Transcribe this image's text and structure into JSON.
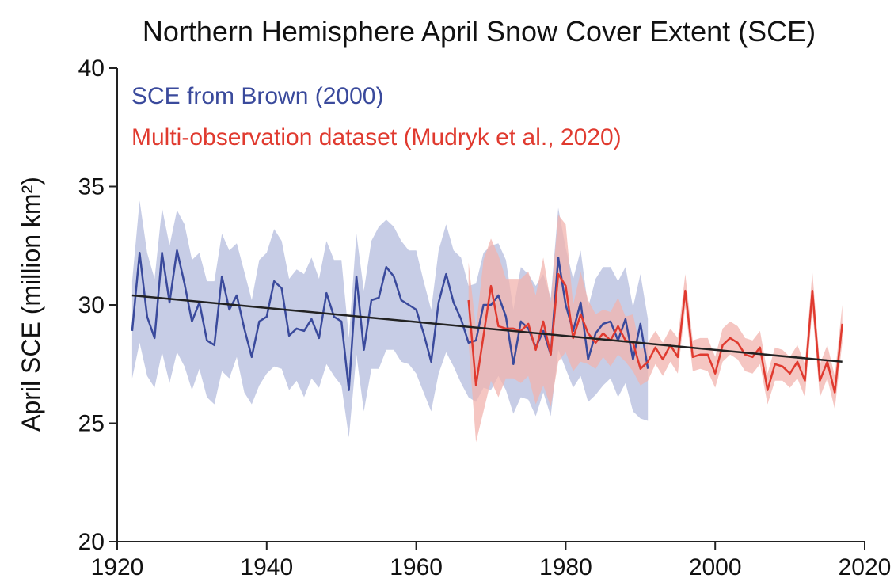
{
  "chart_data": {
    "type": "line",
    "title": "Northern Hemisphere April Snow Cover Extent (SCE)",
    "ylabel": "April SCE (million km²)",
    "xlabel": "",
    "xlim": [
      1920,
      2020
    ],
    "ylim": [
      20,
      40
    ],
    "x_ticks": [
      "1920",
      "1940",
      "1960",
      "1980",
      "2000",
      "2020"
    ],
    "y_ticks": [
      "20",
      "25",
      "30",
      "35",
      "40"
    ],
    "grid": false,
    "legend_position": "top-left",
    "series": [
      {
        "name": "SCE from Brown (2000)",
        "color": "#3a4a9c",
        "band_color": "#c7cde6",
        "x": [
          1922,
          1923,
          1924,
          1925,
          1926,
          1927,
          1928,
          1929,
          1930,
          1931,
          1932,
          1933,
          1934,
          1935,
          1936,
          1937,
          1938,
          1939,
          1940,
          1941,
          1942,
          1943,
          1944,
          1945,
          1946,
          1947,
          1948,
          1949,
          1950,
          1951,
          1952,
          1953,
          1954,
          1955,
          1956,
          1957,
          1958,
          1959,
          1960,
          1961,
          1962,
          1963,
          1964,
          1965,
          1966,
          1967,
          1968,
          1969,
          1970,
          1971,
          1972,
          1973,
          1974,
          1975,
          1976,
          1977,
          1978,
          1979,
          1980,
          1981,
          1982,
          1983,
          1984,
          1985,
          1986,
          1987,
          1988,
          1989,
          1990,
          1991
        ],
        "values": [
          28.9,
          32.2,
          29.5,
          28.6,
          32.2,
          30.1,
          32.3,
          30.9,
          29.3,
          30.1,
          28.5,
          28.3,
          31.2,
          29.8,
          30.4,
          29.0,
          27.8,
          29.3,
          29.5,
          31.0,
          30.7,
          28.7,
          29.0,
          28.9,
          29.4,
          28.6,
          30.5,
          29.5,
          29.3,
          26.4,
          31.2,
          28.1,
          30.2,
          30.3,
          31.6,
          31.2,
          30.2,
          30.0,
          29.8,
          28.8,
          27.6,
          30.1,
          31.3,
          30.1,
          29.4,
          28.4,
          28.5,
          30.0,
          30.0,
          30.4,
          29.5,
          27.5,
          29.3,
          29.0,
          28.2,
          28.9,
          27.9,
          32.0,
          30.0,
          28.9,
          30.1,
          27.7,
          28.8,
          29.2,
          29.3,
          28.5,
          29.4,
          27.7,
          29.2,
          27.3
        ],
        "band_lower": [
          26.9,
          28.4,
          27.0,
          26.5,
          28.0,
          26.7,
          28.0,
          27.4,
          26.4,
          27.3,
          26.1,
          25.8,
          27.2,
          26.9,
          27.8,
          26.3,
          25.8,
          26.6,
          27.1,
          27.4,
          27.3,
          26.4,
          26.8,
          26.1,
          26.9,
          26.5,
          27.5,
          27.0,
          26.6,
          24.4,
          27.9,
          25.5,
          27.3,
          27.3,
          28.1,
          28.1,
          27.6,
          27.5,
          27.1,
          26.3,
          25.5,
          27.1,
          28.0,
          27.4,
          26.7,
          26.1,
          25.9,
          26.5,
          26.4,
          27.0,
          26.4,
          25.4,
          26.1,
          26.0,
          25.3,
          26.3,
          25.3,
          28.1,
          27.3,
          26.5,
          27.0,
          25.9,
          26.2,
          26.6,
          26.9,
          26.1,
          26.7,
          25.5,
          25.2,
          25.1
        ],
        "band_upper": [
          31.0,
          34.4,
          32.2,
          31.1,
          34.1,
          32.5,
          34.0,
          33.4,
          31.9,
          32.2,
          31.0,
          31.0,
          33.0,
          32.3,
          32.6,
          31.4,
          30.2,
          31.9,
          32.2,
          33.2,
          32.7,
          31.1,
          31.5,
          31.3,
          32.0,
          31.1,
          32.7,
          31.9,
          31.9,
          28.6,
          33.0,
          30.6,
          32.7,
          33.3,
          33.6,
          33.3,
          32.7,
          32.3,
          32.3,
          31.0,
          29.8,
          32.3,
          33.4,
          32.3,
          32.0,
          30.8,
          30.9,
          32.2,
          32.5,
          32.6,
          31.9,
          29.8,
          31.6,
          31.3,
          30.8,
          31.3,
          30.3,
          34.1,
          32.4,
          31.1,
          32.3,
          29.9,
          31.1,
          31.6,
          31.6,
          31.0,
          31.6,
          29.9,
          31.3,
          29.4
        ]
      },
      {
        "name": "Multi-observation dataset (Mudryk et al., 2020)",
        "color": "#e03a2f",
        "band_color": "#f2b3ae",
        "x": [
          1967,
          1968,
          1969,
          1970,
          1971,
          1972,
          1973,
          1974,
          1975,
          1976,
          1977,
          1978,
          1979,
          1980,
          1981,
          1982,
          1983,
          1984,
          1985,
          1986,
          1987,
          1988,
          1989,
          1990,
          1991,
          1992,
          1993,
          1994,
          1995,
          1996,
          1997,
          1998,
          1999,
          2000,
          2001,
          2002,
          2003,
          2004,
          2005,
          2006,
          2007,
          2008,
          2009,
          2010,
          2011,
          2012,
          2013,
          2014,
          2015,
          2016,
          2017
        ],
        "values": [
          30.2,
          26.6,
          28.7,
          30.8,
          29.1,
          29.0,
          29.0,
          28.9,
          29.2,
          28.1,
          29.3,
          27.9,
          31.3,
          30.8,
          28.6,
          29.6,
          28.8,
          28.4,
          28.8,
          28.5,
          29.1,
          28.5,
          28.4,
          27.3,
          27.6,
          28.2,
          27.7,
          28.3,
          27.8,
          30.6,
          27.8,
          27.9,
          27.9,
          27.1,
          28.3,
          28.6,
          28.4,
          27.9,
          27.8,
          28.2,
          26.4,
          27.5,
          27.4,
          27.1,
          27.6,
          26.8,
          30.6,
          26.8,
          27.6,
          26.3,
          29.2
        ],
        "band_lower": [
          28.4,
          24.2,
          25.5,
          26.8,
          26.1,
          26.9,
          26.9,
          26.7,
          27.0,
          25.8,
          26.6,
          25.7,
          27.6,
          28.0,
          27.2,
          27.6,
          27.5,
          27.3,
          27.8,
          27.4,
          27.9,
          27.6,
          27.2,
          26.6,
          26.8,
          27.5,
          27.0,
          27.6,
          27.1,
          29.9,
          27.2,
          27.3,
          27.2,
          26.5,
          27.6,
          27.9,
          27.7,
          27.2,
          27.1,
          27.5,
          25.8,
          26.8,
          26.8,
          26.5,
          26.9,
          26.1,
          29.8,
          26.1,
          26.9,
          25.6,
          28.4
        ],
        "band_upper": [
          31.8,
          29.0,
          31.9,
          32.8,
          32.1,
          31.1,
          31.1,
          31.1,
          31.4,
          30.4,
          32.0,
          30.1,
          33.8,
          33.4,
          30.0,
          31.4,
          30.2,
          29.6,
          29.8,
          29.7,
          30.3,
          29.5,
          29.6,
          28.1,
          28.4,
          28.9,
          28.4,
          29.0,
          28.6,
          31.3,
          28.5,
          28.6,
          28.6,
          27.8,
          29.0,
          29.3,
          29.1,
          28.6,
          28.5,
          28.9,
          27.1,
          28.2,
          28.1,
          27.8,
          28.3,
          27.5,
          31.4,
          27.5,
          28.3,
          27.0,
          30.0
        ]
      },
      {
        "name": "",
        "type": "trend",
        "color": "#222222",
        "x": [
          1922,
          2017
        ],
        "values": [
          30.4,
          27.6
        ]
      }
    ]
  }
}
